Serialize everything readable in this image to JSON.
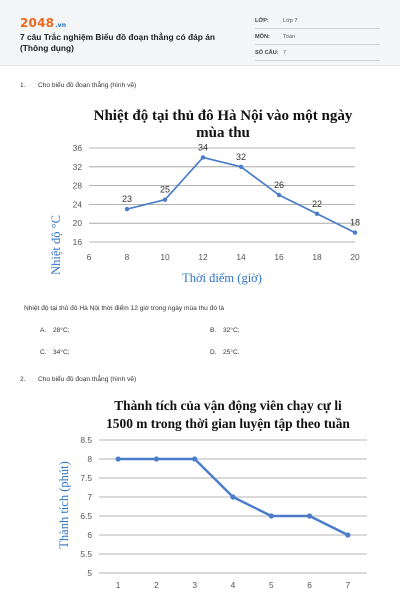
{
  "header": {
    "logo_text": "2048",
    "logo_suffix": ".vn",
    "title": "7 câu Trắc nghiệm Biểu đồ đoạn thẳng có đáp án (Thông dụng)",
    "meta": [
      {
        "key": "LỚP:",
        "value": "Lớp 7"
      },
      {
        "key": "MÔN:",
        "value": "Toán"
      },
      {
        "key": "SỐ CÂU:",
        "value": "7"
      }
    ]
  },
  "questions": [
    {
      "number": "1.",
      "prompt": "Cho biểu đồ đoạn thẳng (hình vẽ)",
      "stem": "Nhiệt độ tại thủ đô Hà Nội thời điểm 12 giờ trong ngày mùa thu đó là",
      "options": [
        {
          "key": "A.",
          "text": "28°C;"
        },
        {
          "key": "B.",
          "text": "32°C;"
        },
        {
          "key": "C.",
          "text": "34°C;"
        },
        {
          "key": "D.",
          "text": "25°C."
        }
      ]
    },
    {
      "number": "2.",
      "prompt": "Cho biểu đồ đoạn thẳng (hình vẽ)"
    }
  ],
  "chart_data": [
    {
      "type": "line",
      "title_lines": [
        "Nhiệt độ tại thủ đô Hà Nội vào một ngày",
        "mùa thu"
      ],
      "xlabel": "Thời điểm (giờ)",
      "ylabel": "Nhiệt độ °C",
      "x_ticks": [
        6,
        8,
        10,
        12,
        14,
        16,
        18,
        20
      ],
      "y_ticks": [
        16,
        20,
        24,
        28,
        32,
        36
      ],
      "xlim": [
        6,
        20
      ],
      "ylim": [
        16,
        36
      ],
      "x": [
        8,
        10,
        12,
        14,
        16,
        18,
        20
      ],
      "y": [
        23,
        25,
        34,
        32,
        26,
        22,
        18
      ],
      "point_labels": [
        "23",
        "25",
        "34",
        "32",
        "26",
        "22",
        "18"
      ],
      "grid": "horizontal",
      "line_color": "#4a7cc9"
    },
    {
      "type": "line",
      "title_lines": [
        "Thành tích của vận động viên chạy cự li",
        "1500 m trong thời gian luyện tập theo tuần"
      ],
      "xlabel": "",
      "ylabel": "Thành tích (phút)",
      "x_ticks": [
        1,
        2,
        3,
        4,
        5,
        6,
        7
      ],
      "y_ticks": [
        5,
        5.5,
        6,
        6.5,
        7,
        7.5,
        8,
        8.5
      ],
      "xlim": [
        0.5,
        7.5
      ],
      "ylim": [
        5,
        8.5
      ],
      "x": [
        1,
        2,
        3,
        4,
        5,
        6,
        7
      ],
      "y": [
        8,
        8,
        8,
        7,
        6.5,
        6.5,
        6
      ],
      "grid": "horizontal",
      "line_color": "#4a7cc9"
    }
  ]
}
